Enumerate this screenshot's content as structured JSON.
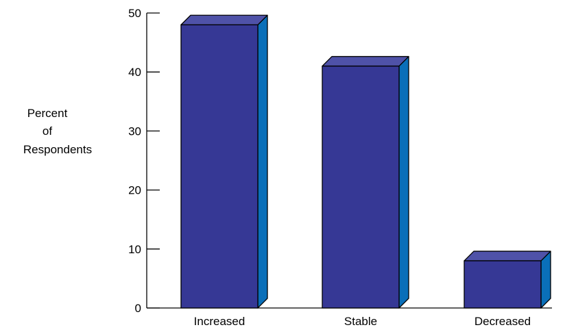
{
  "chart_data": {
    "type": "bar",
    "title": "",
    "xlabel": "",
    "ylabel": [
      "Percent",
      "of",
      "Respondents"
    ],
    "categories": [
      "Increased",
      "Stable",
      "Decreased"
    ],
    "values": [
      48,
      41,
      8
    ],
    "ylim": [
      0,
      50
    ],
    "yticks": [
      "0",
      "10",
      "20",
      "30",
      "40",
      "50"
    ],
    "grid": false,
    "legend": "none",
    "style": "3d",
    "colors": {
      "bar_front": "#363895",
      "bar_top": "#4F52A8",
      "bar_side": "#0A6FB9",
      "outline": "#000000"
    }
  }
}
